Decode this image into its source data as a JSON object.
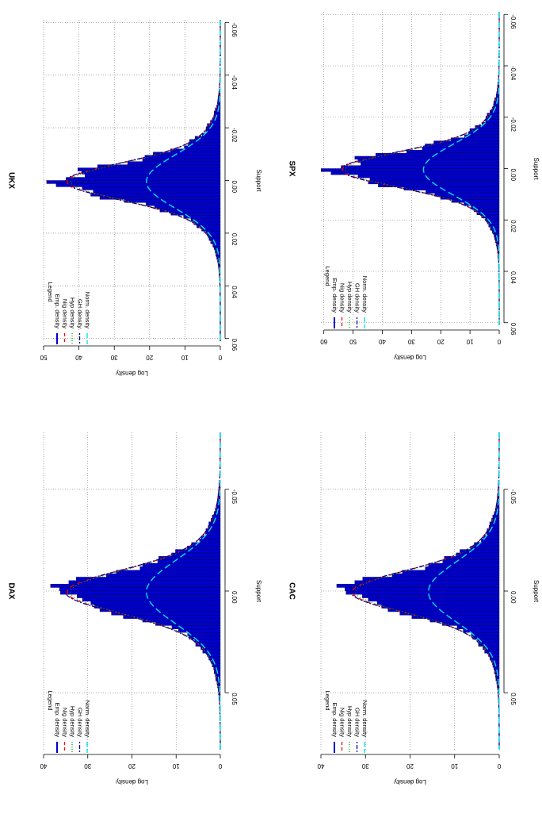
{
  "chart_data": [
    {
      "type": "bar",
      "title": "UKX",
      "xlabel": "Support",
      "ylabel": "Log density",
      "xlim": [
        -0.061,
        0.061
      ],
      "ylim": [
        0,
        50
      ],
      "xticks": [
        "-0.06",
        "-0.04",
        "-0.02",
        "0.00",
        "0.02",
        "0.04",
        "0.06"
      ],
      "xtick_values": [
        -0.06,
        -0.04,
        -0.02,
        0.0,
        0.02,
        0.04,
        0.06
      ],
      "yticks": [
        "0",
        "10",
        "20",
        "30",
        "40",
        "50"
      ],
      "ytick_values": [
        0,
        10,
        20,
        30,
        40,
        50
      ],
      "grid": true,
      "legend": {
        "title": "Legend",
        "placement": "top-left",
        "entries": [
          "Emp. density",
          "Nig density",
          "Hyp density",
          "GH density",
          "Norm. density"
        ]
      },
      "colors": {
        "empirical": "#0000cc",
        "nig": "#ff0000",
        "hyp": "#00aa00",
        "gh": "#000099",
        "norm": "#00e5ee"
      },
      "bin_width": 0.0012,
      "empirical_peak": 50,
      "empirical_mode": 0.0008,
      "fitted_mean": 0.0004,
      "normal_sd": 0.0102
    },
    {
      "type": "bar",
      "title": "SPX",
      "xlabel": "Support",
      "ylabel": "Log density",
      "xlim": [
        -0.061,
        0.061
      ],
      "ylim": [
        0,
        61
      ],
      "xticks": [
        "-0.06",
        "-0.04",
        "-0.02",
        "0.00",
        "0.02",
        "0.04",
        "0.06"
      ],
      "xtick_values": [
        -0.06,
        -0.04,
        -0.02,
        0.0,
        0.02,
        0.04,
        0.06
      ],
      "yticks": [
        "0",
        "10",
        "20",
        "30",
        "40",
        "50",
        "60"
      ],
      "ytick_values": [
        0,
        10,
        20,
        30,
        40,
        50,
        60
      ],
      "grid": true,
      "legend": {
        "title": "Legend",
        "placement": "top-left",
        "entries": [
          "Emp. density",
          "Nig density",
          "Hyp density",
          "GH density",
          "Norm. density"
        ]
      },
      "colors": {
        "empirical": "#0000cc",
        "nig": "#ff0000",
        "hyp": "#00aa00",
        "gh": "#000099",
        "norm": "#00e5ee"
      },
      "bin_width": 0.0012,
      "empirical_peak": 62,
      "empirical_mode": 0.0004,
      "fitted_mean": 0.0004,
      "normal_sd": 0.0099
    },
    {
      "type": "bar",
      "title": "DAX",
      "xlabel": "Support",
      "ylabel": "Log density",
      "xlim": [
        -0.078,
        0.078
      ],
      "ylim": [
        0,
        40
      ],
      "xticks": [
        "-0.05",
        "0.00",
        "0.05"
      ],
      "xtick_values": [
        -0.05,
        0.0,
        0.05
      ],
      "yticks": [
        "0",
        "10",
        "20",
        "30",
        "40"
      ],
      "ytick_values": [
        0,
        10,
        20,
        30,
        40
      ],
      "grid": true,
      "legend": {
        "title": "Legend",
        "placement": "top-left",
        "entries": [
          "Emp. density",
          "Nig density",
          "Hyp density",
          "GH density",
          "Norm. density"
        ]
      },
      "colors": {
        "empirical": "#0000cc",
        "nig": "#ff0000",
        "hyp": "#00aa00",
        "gh": "#000099",
        "norm": "#00e5ee"
      },
      "bin_width": 0.0017,
      "empirical_peak": 40,
      "empirical_mode": 0.0008,
      "fitted_mean": 0.0005,
      "normal_sd": 0.0155
    },
    {
      "type": "bar",
      "title": "CAC",
      "xlabel": "Support",
      "ylabel": "Log density",
      "xlim": [
        -0.078,
        0.078
      ],
      "ylim": [
        0,
        40
      ],
      "xticks": [
        "-0.05",
        "0.00",
        "0.05"
      ],
      "xtick_values": [
        -0.05,
        0.0,
        0.05
      ],
      "yticks": [
        "0",
        "10",
        "20",
        "30",
        "40"
      ],
      "ytick_values": [
        0,
        10,
        20,
        30,
        40
      ],
      "grid": true,
      "legend": {
        "title": "Legend",
        "placement": "top-left",
        "entries": [
          "Emp. density",
          "Nig density",
          "Hyp density",
          "GH density",
          "Norm. density"
        ]
      },
      "colors": {
        "empirical": "#0000cc",
        "nig": "#ff0000",
        "hyp": "#00aa00",
        "gh": "#000099",
        "norm": "#00e5ee"
      },
      "bin_width": 0.0017,
      "empirical_peak": 38,
      "empirical_mode": 0.0004,
      "fitted_mean": 0.0004,
      "normal_sd": 0.0148
    }
  ]
}
